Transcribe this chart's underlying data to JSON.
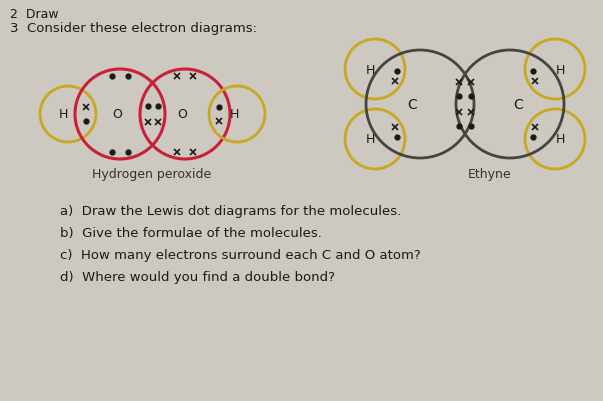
{
  "background_color": "#d8d4cc",
  "title_line1": "2  Draw",
  "title_line2": "3  Consider these electron diagrams:",
  "h2o2_label": "Hydrogen peroxide",
  "ethyne_label": "Ethyne",
  "questions": [
    "a)  Draw the Lewis dot diagrams for the molecules.",
    "b)  Give the formulae of the molecules.",
    "c)  How many electrons surround each C and O atom?",
    "d)  Where would you find a double bond?"
  ],
  "bg": "#ccc8c0"
}
